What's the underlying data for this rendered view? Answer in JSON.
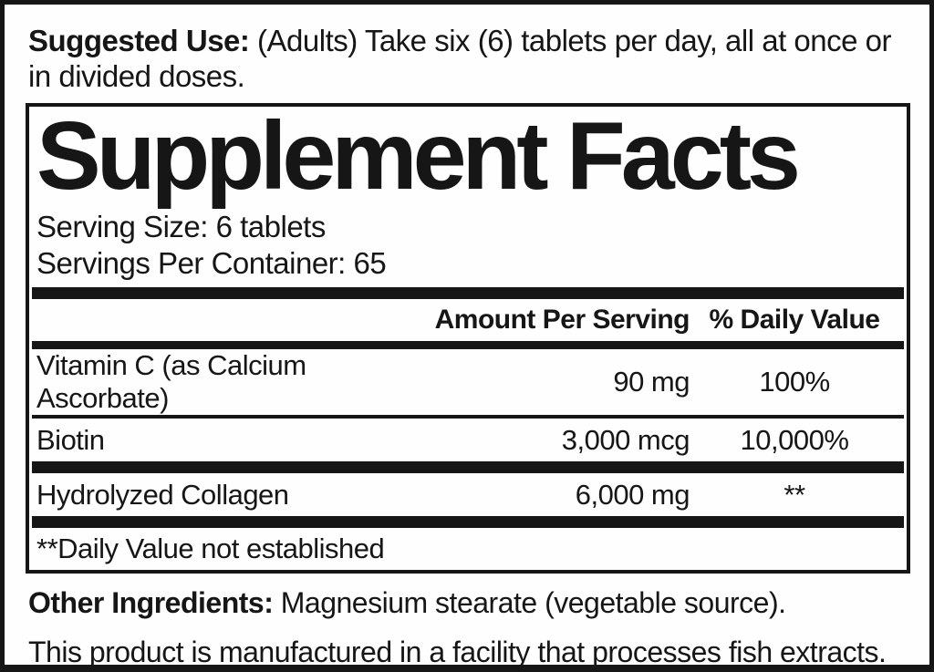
{
  "colors": {
    "ink": "#161616",
    "background": "#ffffff"
  },
  "suggested_use": {
    "lead": "Suggested Use:",
    "rest": " (Adults) Take six (6) tablets per day, all at once or in divided doses."
  },
  "panel": {
    "title": "Supplement Facts",
    "serving_size": "Serving Size: 6 tablets",
    "servings_per_container": "Servings Per Container: 65",
    "columns": {
      "amount": "Amount Per Serving",
      "daily_value": "% Daily Value"
    },
    "rows": [
      {
        "name": "Vitamin C (as Calcium Ascorbate)",
        "amount": "90 mg",
        "daily_value": "100%"
      },
      {
        "name": "Biotin",
        "amount": "3,000 mcg",
        "daily_value": "10,000%"
      },
      {
        "name": "Hydrolyzed Collagen",
        "amount": "6,000 mg",
        "daily_value": "**"
      }
    ],
    "footnote": "**Daily Value not established"
  },
  "other_ingredients": {
    "lead": "Other Ingredients:",
    "rest": " Magnesium stearate (vegetable source)."
  },
  "facility_note": "This product is manufactured in a facility that processes fish extracts."
}
